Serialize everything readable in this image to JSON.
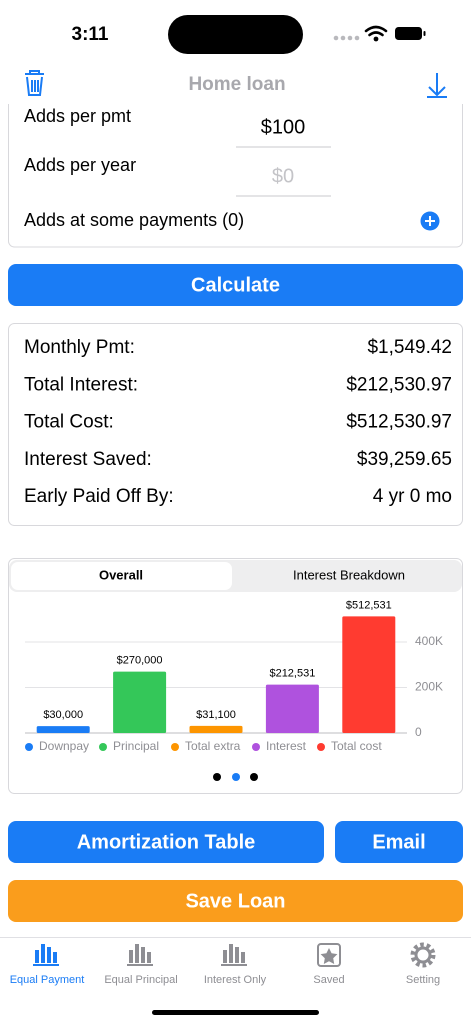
{
  "status_bar": {
    "time": "3:11"
  },
  "nav": {
    "title": "Home loan"
  },
  "inputs": [
    {
      "label": "Adds per pmt",
      "value": "$100"
    },
    {
      "label": "Adds per year",
      "placeholder": "$0"
    }
  ],
  "adds_at_some": "Adds at some payments (0)",
  "calculate_button": "Calculate",
  "results": [
    {
      "label": "Monthly Pmt:",
      "value": "$1,549.42"
    },
    {
      "label": "Total Interest:",
      "value": "$212,530.97"
    },
    {
      "label": "Total Cost:",
      "value": "$512,530.97"
    },
    {
      "label": "Interest Saved:",
      "value": "$39,259.65"
    },
    {
      "label": "Early Paid Off By:",
      "value": "4 yr 0 mo"
    }
  ],
  "chart_tabs": [
    "Overall",
    "Interest Breakdown"
  ],
  "chart_data": {
    "type": "bar",
    "categories": [
      "Downpay",
      "Principal",
      "Total extra",
      "Interest",
      "Total cost"
    ],
    "values": [
      30000,
      270000,
      31100,
      212531,
      512531
    ],
    "value_labels": [
      "$30,000",
      "$270,000",
      "$31,100",
      "$212,531",
      "$512,531"
    ],
    "colors": [
      "#1a7cf5",
      "#34c759",
      "#fd9500",
      "#af52de",
      "#ff3b30"
    ],
    "ylim": [
      0,
      600000
    ],
    "yticks": [
      0,
      {
        "value": 200000,
        "label": "200K"
      },
      {
        "value": 400000,
        "label": "400K"
      }
    ],
    "y_axis_side": "right",
    "grid": true,
    "legend": "bottom"
  },
  "buttons": {
    "amortization": "Amortization Table",
    "email": "Email",
    "save": "Save Loan"
  },
  "tab_bar": [
    "Equal Payment",
    "Equal Principal",
    "Interest Only",
    "Saved",
    "Setting"
  ]
}
